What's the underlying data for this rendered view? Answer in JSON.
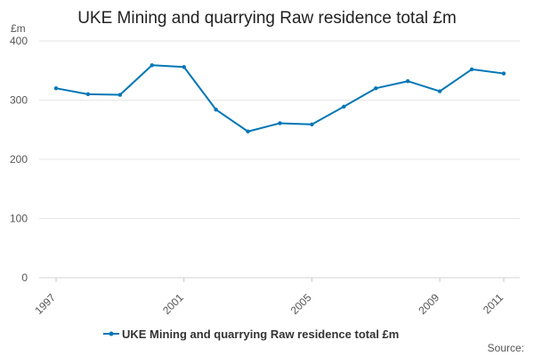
{
  "chart_data": {
    "type": "line",
    "title": "UKE Mining and quarrying Raw residence total £m",
    "y_unit_label": "£m",
    "xlabel": "",
    "ylabel": "£m",
    "xlim": [
      1997,
      2011
    ],
    "ylim": [
      0,
      400
    ],
    "y_ticks": [
      0,
      100,
      200,
      300,
      400
    ],
    "x_ticks": [
      1997,
      2001,
      2005,
      2009,
      2011
    ],
    "x_tick_labels": [
      "1997",
      "2001",
      "2005",
      "2009",
      "2011"
    ],
    "y_tick_labels": [
      "0",
      "100",
      "200",
      "300",
      "400"
    ],
    "grid": true,
    "legend_position": "bottom-center",
    "series": [
      {
        "name": "UKE Mining and quarrying Raw residence total £m",
        "color": "#0076b6",
        "x": [
          1997,
          1998,
          1999,
          2000,
          2001,
          2002,
          2003,
          2004,
          2005,
          2006,
          2007,
          2008,
          2009,
          2010,
          2011
        ],
        "values": [
          320,
          310,
          309,
          359,
          356,
          284,
          247,
          261,
          259,
          289,
          320,
          332,
          315,
          352,
          345
        ]
      }
    ],
    "source_label": "Source:"
  }
}
